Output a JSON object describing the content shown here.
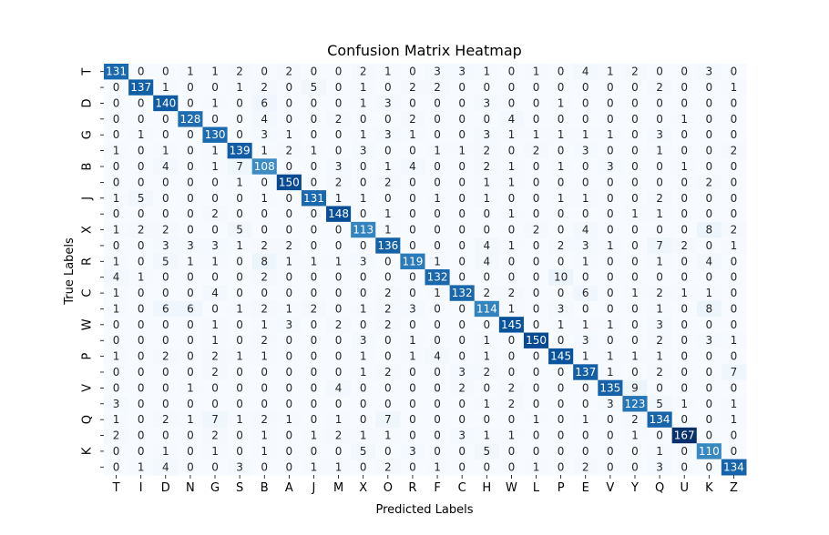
{
  "chart_data": {
    "type": "heatmap",
    "title": "Confusion Matrix Heatmap",
    "xlabel": "Predicted Labels",
    "ylabel": "True Labels",
    "x_labels": [
      "T",
      "I",
      "D",
      "N",
      "G",
      "S",
      "B",
      "A",
      "J",
      "M",
      "X",
      "O",
      "R",
      "F",
      "C",
      "H",
      "W",
      "L",
      "P",
      "E",
      "V",
      "Y",
      "Q",
      "U",
      "K",
      "Z"
    ],
    "y_labels": [
      "T",
      "",
      "D",
      "",
      "G",
      "",
      "B",
      "",
      "J",
      "",
      "X",
      "",
      "R",
      "",
      "C",
      "",
      "W",
      "",
      "P",
      "",
      "V",
      "",
      "Q",
      "",
      "K",
      ""
    ],
    "matrix": [
      [
        131,
        0,
        0,
        1,
        1,
        2,
        0,
        2,
        0,
        0,
        2,
        1,
        0,
        3,
        3,
        1,
        0,
        1,
        0,
        4,
        1,
        2,
        0,
        0,
        3,
        0
      ],
      [
        0,
        137,
        1,
        0,
        0,
        1,
        2,
        0,
        5,
        0,
        1,
        0,
        2,
        2,
        0,
        0,
        0,
        0,
        0,
        0,
        0,
        0,
        2,
        0,
        0,
        1
      ],
      [
        0,
        0,
        140,
        0,
        1,
        0,
        6,
        0,
        0,
        0,
        1,
        3,
        0,
        0,
        0,
        3,
        0,
        0,
        1,
        0,
        0,
        0,
        0,
        0,
        0,
        0
      ],
      [
        0,
        0,
        0,
        128,
        0,
        0,
        4,
        0,
        0,
        2,
        0,
        0,
        2,
        0,
        0,
        0,
        4,
        0,
        0,
        0,
        0,
        0,
        0,
        1,
        0,
        0
      ],
      [
        0,
        1,
        0,
        0,
        130,
        0,
        3,
        1,
        0,
        0,
        1,
        3,
        1,
        0,
        0,
        3,
        1,
        1,
        1,
        1,
        1,
        0,
        3,
        0,
        0,
        0
      ],
      [
        1,
        0,
        1,
        0,
        1,
        139,
        1,
        2,
        1,
        0,
        3,
        0,
        0,
        1,
        1,
        2,
        0,
        2,
        0,
        3,
        0,
        0,
        1,
        0,
        0,
        2
      ],
      [
        0,
        0,
        4,
        0,
        1,
        7,
        108,
        0,
        0,
        3,
        0,
        1,
        4,
        0,
        0,
        2,
        1,
        0,
        1,
        0,
        3,
        0,
        0,
        1,
        0,
        0
      ],
      [
        0,
        0,
        0,
        0,
        0,
        1,
        0,
        150,
        0,
        2,
        0,
        2,
        0,
        0,
        0,
        1,
        1,
        0,
        0,
        0,
        0,
        0,
        0,
        0,
        2,
        0
      ],
      [
        1,
        5,
        0,
        0,
        0,
        0,
        1,
        0,
        131,
        1,
        1,
        0,
        0,
        1,
        0,
        1,
        0,
        0,
        1,
        1,
        0,
        0,
        2,
        0,
        0,
        0
      ],
      [
        0,
        0,
        0,
        0,
        2,
        0,
        0,
        0,
        0,
        148,
        0,
        1,
        0,
        0,
        0,
        0,
        1,
        0,
        0,
        0,
        0,
        1,
        1,
        0,
        0,
        0
      ],
      [
        1,
        2,
        2,
        0,
        0,
        5,
        0,
        0,
        0,
        0,
        113,
        1,
        0,
        0,
        0,
        0,
        0,
        2,
        0,
        4,
        0,
        0,
        0,
        0,
        8,
        2
      ],
      [
        0,
        0,
        3,
        3,
        3,
        1,
        2,
        2,
        0,
        0,
        0,
        136,
        0,
        0,
        0,
        4,
        1,
        0,
        2,
        3,
        1,
        0,
        7,
        2,
        0,
        1
      ],
      [
        1,
        0,
        5,
        1,
        1,
        0,
        8,
        1,
        1,
        1,
        3,
        0,
        119,
        1,
        0,
        4,
        0,
        0,
        0,
        1,
        0,
        0,
        1,
        0,
        4,
        0
      ],
      [
        4,
        1,
        0,
        0,
        0,
        0,
        2,
        0,
        0,
        0,
        0,
        0,
        0,
        132,
        0,
        0,
        0,
        0,
        10,
        0,
        0,
        0,
        0,
        0,
        0,
        0
      ],
      [
        1,
        0,
        0,
        0,
        4,
        0,
        0,
        0,
        0,
        0,
        0,
        2,
        0,
        1,
        132,
        2,
        2,
        0,
        0,
        6,
        0,
        1,
        2,
        1,
        1,
        0
      ],
      [
        1,
        0,
        6,
        6,
        0,
        1,
        2,
        1,
        2,
        0,
        1,
        2,
        3,
        0,
        0,
        114,
        1,
        0,
        3,
        0,
        0,
        0,
        1,
        0,
        8,
        0
      ],
      [
        0,
        0,
        0,
        0,
        1,
        0,
        1,
        3,
        0,
        2,
        0,
        2,
        0,
        0,
        0,
        0,
        145,
        0,
        1,
        1,
        1,
        0,
        3,
        0,
        0,
        0
      ],
      [
        0,
        0,
        0,
        0,
        1,
        0,
        2,
        0,
        0,
        0,
        3,
        0,
        1,
        0,
        0,
        1,
        0,
        150,
        0,
        3,
        0,
        0,
        2,
        0,
        3,
        1
      ],
      [
        1,
        0,
        2,
        0,
        2,
        1,
        1,
        0,
        0,
        0,
        1,
        0,
        1,
        4,
        0,
        1,
        0,
        0,
        145,
        1,
        1,
        1,
        1,
        0,
        0,
        0
      ],
      [
        0,
        0,
        0,
        0,
        2,
        0,
        0,
        0,
        0,
        0,
        1,
        2,
        0,
        0,
        3,
        2,
        0,
        0,
        0,
        137,
        1,
        0,
        2,
        0,
        0,
        7
      ],
      [
        0,
        0,
        0,
        1,
        0,
        0,
        0,
        0,
        0,
        4,
        0,
        0,
        0,
        0,
        2,
        0,
        2,
        0,
        0,
        0,
        135,
        9,
        0,
        0,
        0,
        0
      ],
      [
        3,
        0,
        0,
        0,
        0,
        0,
        0,
        0,
        0,
        0,
        0,
        0,
        0,
        0,
        0,
        1,
        2,
        0,
        0,
        0,
        3,
        123,
        5,
        1,
        0,
        1
      ],
      [
        1,
        0,
        2,
        1,
        7,
        1,
        2,
        1,
        0,
        1,
        0,
        7,
        0,
        0,
        0,
        0,
        0,
        1,
        0,
        1,
        0,
        2,
        134,
        0,
        0,
        1
      ],
      [
        2,
        0,
        0,
        0,
        2,
        0,
        1,
        0,
        1,
        2,
        1,
        1,
        0,
        0,
        3,
        1,
        1,
        0,
        0,
        0,
        0,
        1,
        0,
        167,
        0,
        0
      ],
      [
        0,
        0,
        1,
        0,
        1,
        0,
        1,
        0,
        0,
        0,
        5,
        0,
        3,
        0,
        0,
        5,
        0,
        0,
        0,
        0,
        0,
        0,
        1,
        0,
        110,
        0
      ],
      [
        0,
        1,
        4,
        0,
        0,
        3,
        0,
        0,
        1,
        1,
        0,
        2,
        0,
        1,
        0,
        0,
        0,
        1,
        0,
        2,
        0,
        0,
        3,
        0,
        0,
        134
      ]
    ],
    "colormap": "Blues",
    "vmin": 0,
    "vmax": 167,
    "grid": false,
    "legend": "none"
  }
}
